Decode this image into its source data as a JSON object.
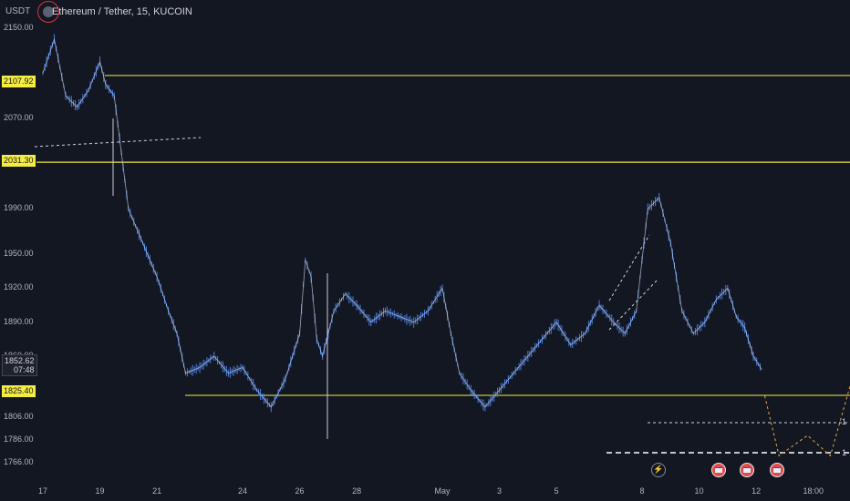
{
  "header": {
    "quote_currency": "USDT",
    "symbol": "Ethereum / Tether, 15, KUCOIN"
  },
  "price_axis": {
    "labels": [
      "2150.00",
      "2070.00",
      "1990.00",
      "1950.00",
      "1920.00",
      "1890.00",
      "1860.00",
      "1806.00",
      "1786.00",
      "1766.00"
    ],
    "values": [
      2150,
      2070,
      1990,
      1950,
      1920,
      1890,
      1860,
      1806,
      1786,
      1766
    ],
    "tags": [
      {
        "text": "2107.92",
        "value": 2107.92,
        "kind": "level"
      },
      {
        "text": "2031.30",
        "value": 2031.3,
        "kind": "level"
      },
      {
        "text": "1825.40",
        "value": 1825.4,
        "kind": "level"
      }
    ],
    "current": {
      "price": "1852.62",
      "countdown": "07:48",
      "value": 1852.62
    }
  },
  "time_axis": {
    "labels": [
      "17",
      "19",
      "21",
      "24",
      "26",
      "28",
      "May",
      "3",
      "5",
      "8",
      "10",
      "12",
      "18:00"
    ],
    "positions": [
      0,
      2,
      4,
      7,
      9,
      11,
      14,
      16,
      18,
      21,
      23,
      25,
      27
    ]
  },
  "events": {
    "flags": [
      "flag-us",
      "flag-us",
      "flag-us"
    ],
    "bolt": "lightning-icon"
  },
  "markers": [
    "1",
    "1"
  ],
  "colors": {
    "background": "#131722",
    "candles": "#4a7fe0",
    "levels": "#f5ec42",
    "projection": "#e0a640",
    "dashed": "#d1d4dc"
  },
  "chart_data": {
    "type": "line",
    "title": "Ethereum / Tether, 15, KUCOIN",
    "xlabel": "",
    "ylabel": "USDT",
    "ylim": [
      1756,
      2160
    ],
    "x": [
      17,
      17.4,
      17.8,
      18.2,
      18.6,
      19.0,
      19.2,
      19.5,
      20.0,
      20.5,
      21.0,
      21.4,
      21.7,
      22.0,
      22.5,
      23.0,
      23.5,
      24.0,
      24.5,
      25.0,
      25.5,
      26.0,
      26.2,
      26.4,
      26.6,
      26.8,
      27.2,
      27.6,
      28.0,
      28.5,
      29.0,
      29.5,
      30.0,
      30.5,
      31.0,
      31.3,
      31.6,
      32.0,
      32.5,
      33.0,
      33.5,
      34.0,
      34.5,
      35.0,
      35.5,
      36.0,
      36.5,
      37.0,
      37.4,
      37.8,
      38.2,
      38.6,
      39.0,
      39.4,
      39.8,
      40.2,
      40.6,
      41.0,
      41.3,
      41.6,
      41.9,
      42.2
    ],
    "series": [
      {
        "values": [
          2110,
          2140,
          2090,
          2080,
          2095,
          2120,
          2100,
          2090,
          1990,
          1960,
          1930,
          1900,
          1880,
          1845,
          1850,
          1860,
          1845,
          1850,
          1830,
          1815,
          1840,
          1880,
          1945,
          1930,
          1875,
          1860,
          1900,
          1915,
          1905,
          1890,
          1900,
          1895,
          1890,
          1900,
          1920,
          1880,
          1845,
          1830,
          1815,
          1830,
          1845,
          1860,
          1875,
          1890,
          1870,
          1880,
          1905,
          1890,
          1880,
          1900,
          1990,
          2000,
          1960,
          1900,
          1880,
          1890,
          1910,
          1920,
          1895,
          1885,
          1860,
          1848
        ]
      }
    ],
    "levels": [
      2107.92,
      2031.3,
      1825.4
    ],
    "projection": [
      [
        42.3,
        1825
      ],
      [
        42.8,
        1772
      ],
      [
        43.8,
        1790
      ],
      [
        44.6,
        1772
      ],
      [
        47.5,
        2031
      ]
    ],
    "dashed_levels": [
      1795,
      1772
    ]
  }
}
